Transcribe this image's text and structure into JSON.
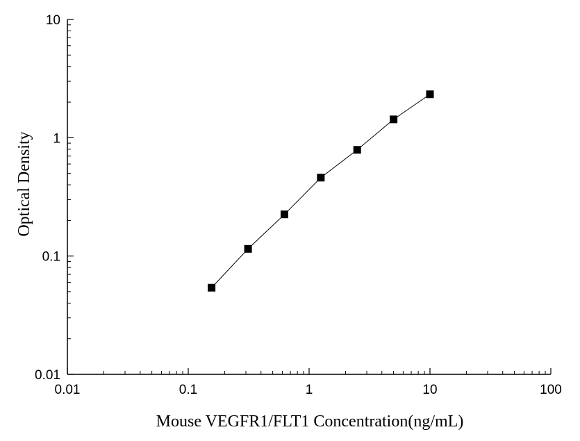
{
  "chart_data": {
    "type": "scatter",
    "title": "",
    "xlabel": "Mouse VEGFR1/FLT1 Concentration(ng/mL)",
    "ylabel": "Optical Density",
    "xscale": "log",
    "yscale": "log",
    "xlim": [
      0.01,
      100
    ],
    "ylim": [
      0.01,
      10
    ],
    "x_ticks": [
      0.01,
      0.1,
      1,
      10,
      100
    ],
    "x_tick_labels": [
      "0.01",
      "0.1",
      "1",
      "10",
      "100"
    ],
    "y_ticks": [
      0.01,
      0.1,
      1,
      10
    ],
    "y_tick_labels": [
      "0.01",
      "0.1",
      "1",
      "10"
    ],
    "grid": false,
    "legend": "none",
    "marker": "square",
    "connect_points": true,
    "series": [
      {
        "x": [
          0.156,
          0.3125,
          0.625,
          1.25,
          2.5,
          5,
          10
        ],
        "y": [
          0.054,
          0.115,
          0.225,
          0.46,
          0.79,
          1.43,
          2.33
        ]
      }
    ],
    "colors": {
      "axis": "#000000",
      "marker": "#000000",
      "line": "#000000"
    }
  }
}
